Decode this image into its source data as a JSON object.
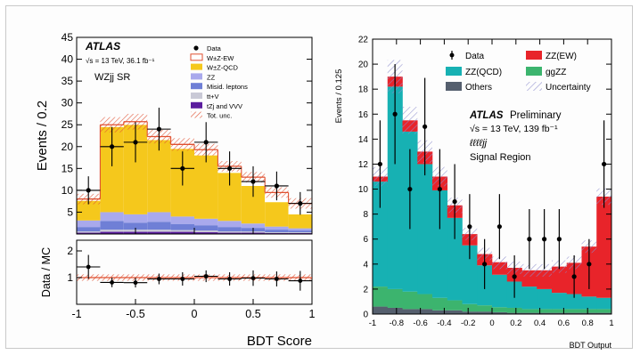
{
  "chart_data": [
    {
      "type": "bar",
      "stacked": true,
      "xlabel": "BDT Score",
      "ylabel": "Events / 0.2",
      "xlim": [
        -1,
        1
      ],
      "ylim": [
        0,
        45
      ],
      "xticks": [
        "-1",
        "-0.5",
        "0",
        "0.5",
        "1"
      ],
      "yticks": [
        "5",
        "10",
        "15",
        "20",
        "25",
        "30",
        "35",
        "40",
        "45"
      ],
      "bin_edges": [
        -1,
        -0.8,
        -0.6,
        -0.4,
        -0.2,
        0,
        0.2,
        0.4,
        0.6,
        0.8,
        1
      ],
      "annotations": {
        "experiment": "ATLAS",
        "energy": "√s = 13 TeV, 36.1 fb⁻¹",
        "region": "WZjj SR"
      },
      "legend": [
        "Data",
        "W±Z-EW",
        "W±Z-QCD",
        "ZZ",
        "Misid. leptons",
        "tt+V",
        "tZj and VVV",
        "Tot. unc."
      ],
      "series": [
        {
          "name": "tZj and VVV",
          "color": "#5b1d9e",
          "values": [
            0.3,
            0.5,
            0.5,
            0.5,
            0.5,
            0.4,
            0.3,
            0.3,
            0.2,
            0.2
          ]
        },
        {
          "name": "tt+V",
          "color": "#c9c9d6",
          "values": [
            0.3,
            0.5,
            0.5,
            0.5,
            0.4,
            0.4,
            0.3,
            0.3,
            0.2,
            0.2
          ]
        },
        {
          "name": "Misid. leptons",
          "color": "#6f7fd6",
          "values": [
            1.0,
            2.0,
            1.6,
            1.8,
            1.4,
            1.2,
            1.0,
            0.8,
            0.6,
            0.4
          ]
        },
        {
          "name": "ZZ",
          "color": "#a9a9ec",
          "values": [
            1.5,
            2.0,
            1.9,
            2.2,
            1.7,
            1.5,
            1.4,
            1.0,
            0.7,
            0.5
          ]
        },
        {
          "name": "W±Z-QCD",
          "color": "#f5c81c",
          "values": [
            4.5,
            19.5,
            20.5,
            16.5,
            15.5,
            14.5,
            11.0,
            8.6,
            5.6,
            3.2
          ]
        },
        {
          "name": "W±Z-EW",
          "color": "#ffffff",
          "edge": "#e05030",
          "values": [
            0.4,
            0.5,
            0.7,
            0.8,
            1.0,
            1.3,
            1.5,
            2.0,
            2.2,
            2.5
          ]
        }
      ],
      "data": {
        "x": [
          -0.9,
          -0.7,
          -0.5,
          -0.3,
          -0.1,
          0.1,
          0.3,
          0.5,
          0.7,
          0.9
        ],
        "y": [
          10,
          20,
          21,
          24,
          15,
          21,
          15,
          12,
          11,
          7
        ],
        "err": [
          3.2,
          4.5,
          4.6,
          4.9,
          3.9,
          4.6,
          3.9,
          3.5,
          3.3,
          2.6
        ]
      },
      "ratio_panel": {
        "ylabel": "Data / MC",
        "ylim": [
          0,
          2.4
        ],
        "yticks": [
          "1",
          "2"
        ],
        "values": [
          1.4,
          0.82,
          0.81,
          0.95,
          0.95,
          1.05,
          0.95,
          0.98,
          0.95,
          0.88
        ],
        "err": [
          0.45,
          0.18,
          0.18,
          0.2,
          0.25,
          0.22,
          0.25,
          0.29,
          0.28,
          0.37
        ]
      }
    },
    {
      "type": "bar",
      "stacked": true,
      "xlabel": "BDT Output",
      "ylabel": "Events / 0.125",
      "xlim": [
        -1,
        1
      ],
      "ylim": [
        0,
        22
      ],
      "xticks": [
        "-1",
        "-0.8",
        "-0.6",
        "-0.4",
        "-0.2",
        "0",
        "0.2",
        "0.4",
        "0.6",
        "0.8",
        "1"
      ],
      "yticks": [
        "0",
        "2",
        "4",
        "6",
        "8",
        "10",
        "12",
        "14",
        "16",
        "18",
        "20",
        "22"
      ],
      "bin_edges": [
        -1,
        -0.875,
        -0.75,
        -0.625,
        -0.5,
        -0.375,
        -0.25,
        -0.125,
        0,
        0.125,
        0.25,
        0.375,
        0.5,
        0.625,
        0.75,
        0.875,
        1
      ],
      "annotations": {
        "experiment": "ATLAS",
        "status": "Preliminary",
        "energy": "√s = 13 TeV, 139 fb⁻¹",
        "channel": "ℓℓℓℓjj",
        "region": "Signal Region"
      },
      "legend": [
        "Data",
        "ZZ(EW)",
        "ZZ(QCD)",
        "ggZZ",
        "Others",
        "Uncertainty"
      ],
      "series": [
        {
          "name": "Others",
          "color": "#555f6e",
          "values": [
            0.6,
            0.5,
            0.4,
            0.4,
            0.3,
            0.3,
            0.2,
            0.2,
            0.15,
            0.1,
            0.1,
            0.1,
            0.1,
            0.1,
            0.1,
            0.1
          ]
        },
        {
          "name": "ggZZ",
          "color": "#3cb46e",
          "values": [
            1.6,
            1.5,
            1.4,
            1.2,
            1.0,
            0.8,
            0.6,
            0.5,
            0.4,
            0.4,
            0.3,
            0.3,
            0.3,
            0.3,
            0.3,
            0.3
          ]
        },
        {
          "name": "ZZ(QCD)",
          "color": "#17b1b3",
          "values": [
            8.4,
            16.2,
            12.8,
            10.4,
            8.6,
            6.6,
            4.7,
            3.2,
            2.6,
            2.1,
            1.8,
            1.6,
            1.3,
            1.2,
            1.0,
            0.9
          ]
        },
        {
          "name": "ZZ(EW)",
          "color": "#e8242a",
          "values": [
            0.4,
            0.8,
            0.9,
            1.0,
            1.1,
            1.0,
            0.9,
            0.9,
            1.0,
            1.1,
            1.3,
            1.5,
            2.1,
            2.5,
            4.0,
            8.1
          ]
        }
      ],
      "uncertainty_band_totals": [
        11.0,
        19.0,
        15.5,
        13.0,
        11.0,
        8.7,
        6.4,
        4.8,
        4.1,
        3.7,
        3.5,
        3.5,
        3.8,
        4.1,
        5.4,
        9.4
      ],
      "data": {
        "x": [
          -0.9375,
          -0.8125,
          -0.6875,
          -0.5625,
          -0.4375,
          -0.3125,
          -0.1875,
          -0.0625,
          0.0625,
          0.1875,
          0.3125,
          0.4375,
          0.5625,
          0.6875,
          0.8125,
          0.9375
        ],
        "y": [
          12,
          16,
          10,
          15,
          10,
          9,
          7,
          4,
          7,
          3,
          6,
          6,
          6,
          3,
          4,
          12
        ],
        "err": [
          3.5,
          4.0,
          3.2,
          3.9,
          3.2,
          3.0,
          2.6,
          2.0,
          2.6,
          1.7,
          2.4,
          2.4,
          2.4,
          1.7,
          2.0,
          3.5
        ]
      }
    }
  ]
}
